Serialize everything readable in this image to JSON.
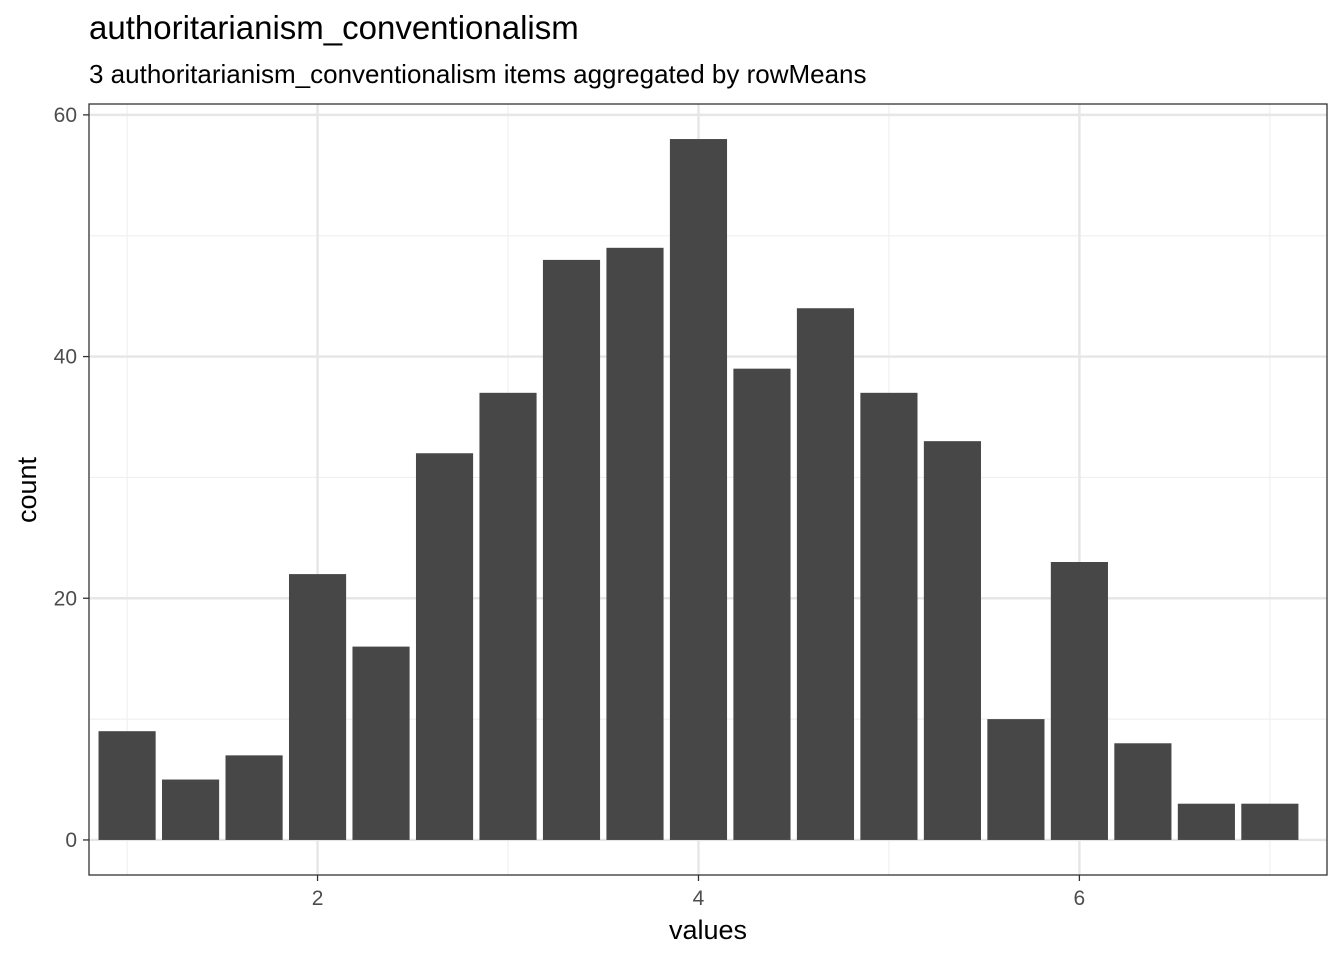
{
  "chart_data": {
    "type": "bar",
    "title": "authoritarianism_conventionalism",
    "subtitle": "3 authoritarianism_conventionalism items aggregated by rowMeans",
    "xlabel": "values",
    "ylabel": "count",
    "xlim": [
      0.8,
      7.3
    ],
    "ylim": [
      -2.9,
      60.9
    ],
    "x_ticks": [
      2,
      4,
      6
    ],
    "x_tick_labels": [
      "2",
      "4",
      "6"
    ],
    "y_ticks": [
      0,
      20,
      40,
      60
    ],
    "y_tick_labels": [
      "0",
      "20",
      "40",
      "60"
    ],
    "bin_width": 0.3333,
    "bins": [
      {
        "x": 1.0,
        "count": 9
      },
      {
        "x": 1.3333,
        "count": 5
      },
      {
        "x": 1.6667,
        "count": 7
      },
      {
        "x": 2.0,
        "count": 22
      },
      {
        "x": 2.3333,
        "count": 16
      },
      {
        "x": 2.6667,
        "count": 32
      },
      {
        "x": 3.0,
        "count": 37
      },
      {
        "x": 3.3333,
        "count": 48
      },
      {
        "x": 3.6667,
        "count": 49
      },
      {
        "x": 4.0,
        "count": 58
      },
      {
        "x": 4.3333,
        "count": 39
      },
      {
        "x": 4.6667,
        "count": 44
      },
      {
        "x": 5.0,
        "count": 37
      },
      {
        "x": 5.3333,
        "count": 33
      },
      {
        "x": 5.6667,
        "count": 10
      },
      {
        "x": 6.0,
        "count": 23
      },
      {
        "x": 6.3333,
        "count": 8
      },
      {
        "x": 6.6667,
        "count": 3
      },
      {
        "x": 7.0,
        "count": 3
      }
    ],
    "grid": true,
    "colors": {
      "bar": "#474747",
      "grid_major": "#e6e6e6",
      "grid_minor": "#f0f0f0",
      "panel_border": "#333333",
      "tick_label": "#4d4d4d"
    }
  }
}
